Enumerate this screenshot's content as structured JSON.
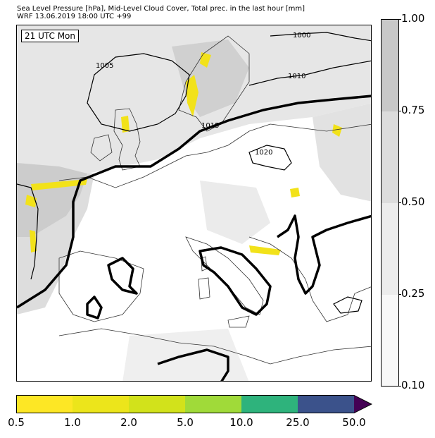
{
  "header": {
    "title": "Sea Level Pressure [hPa], Mid-Level Cloud Cover, Total prec. in the last hour [mm]",
    "subtitle": "WRF 13.06.2019 18:00 UTC +99"
  },
  "map": {
    "time_label": "21 UTC Mon",
    "isobar_labels": [
      "1000",
      "1005",
      "1010",
      "1015",
      "1020"
    ],
    "colors": {
      "land_line": "#333333",
      "isobar": "#000000",
      "cloud_light": "#eeeeee",
      "cloud_mid": "#dddddd",
      "cloud_dark": "#c8c8c8",
      "precip": "#f2e21a"
    }
  },
  "cloud_colorbar": {
    "ticks": [
      "1.00",
      "0.75",
      "0.50",
      "0.25",
      "0.10"
    ],
    "colors": [
      "#c8c8c8",
      "#dcdcdc",
      "#ececec",
      "#f8f8f8"
    ]
  },
  "precip_colorbar": {
    "ticks": [
      "0.5",
      "1.0",
      "2.0",
      "5.0",
      "10.0",
      "25.0",
      "50.0"
    ],
    "colors": [
      "#fde725",
      "#ece51b",
      "#d2e21b",
      "#a0da39",
      "#2eb37c",
      "#3b528b",
      "#440154"
    ]
  }
}
